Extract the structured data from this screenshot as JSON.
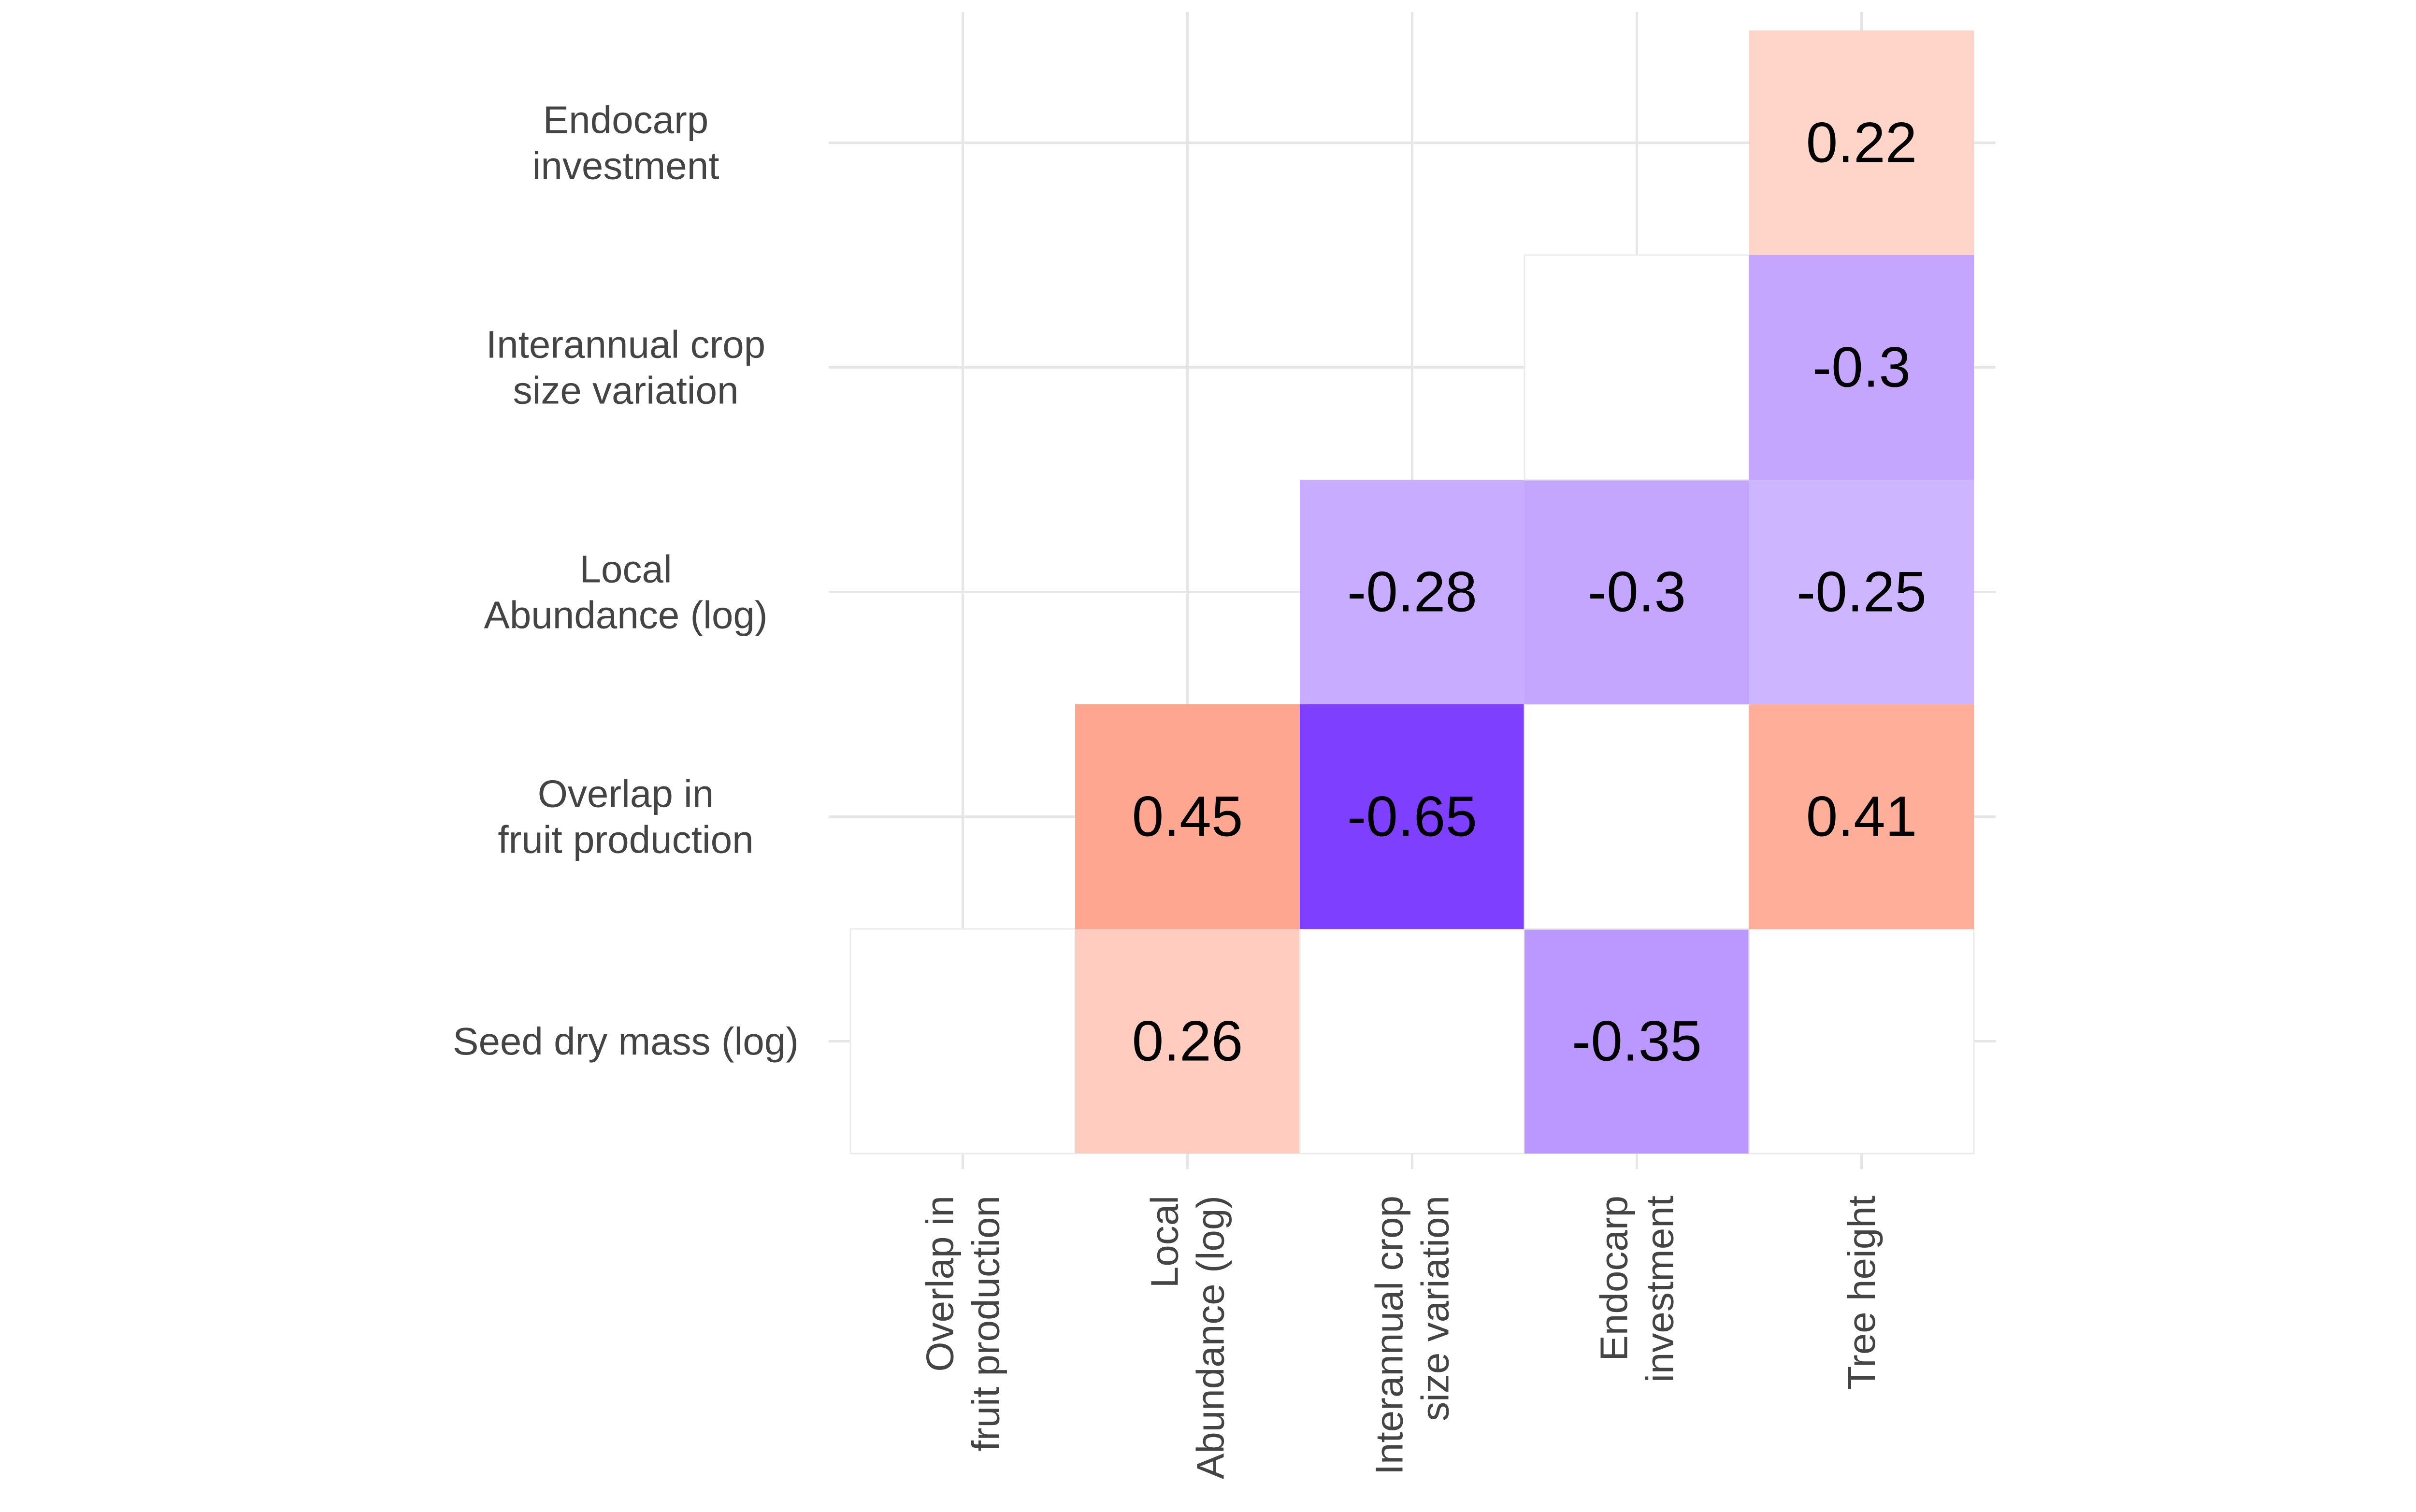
{
  "chart_data": {
    "type": "heatmap",
    "title": "",
    "xlabel": "",
    "ylabel": "",
    "x_categories": [
      [
        "Overlap in",
        "fruit production"
      ],
      [
        "Local",
        "Abundance (log)"
      ],
      [
        "Interannual crop",
        "size variation"
      ],
      [
        "Endocarp",
        "investment"
      ],
      [
        "Tree height"
      ]
    ],
    "y_categories": [
      [
        "Seed dry mass (log)"
      ],
      [
        "Overlap in",
        "fruit production"
      ],
      [
        "Local",
        "Abundance (log)"
      ],
      [
        "Interannual crop",
        "size variation"
      ],
      [
        "Endocarp",
        "investment"
      ]
    ],
    "cells": [
      {
        "x": 0,
        "y": 0,
        "value": null
      },
      {
        "x": 1,
        "y": 0,
        "value": 0.26
      },
      {
        "x": 2,
        "y": 0,
        "value": null
      },
      {
        "x": 3,
        "y": 0,
        "value": -0.35
      },
      {
        "x": 4,
        "y": 0,
        "value": null
      },
      {
        "x": 1,
        "y": 1,
        "value": 0.45
      },
      {
        "x": 2,
        "y": 1,
        "value": -0.65
      },
      {
        "x": 3,
        "y": 1,
        "value": null
      },
      {
        "x": 4,
        "y": 1,
        "value": 0.41
      },
      {
        "x": 2,
        "y": 2,
        "value": -0.28
      },
      {
        "x": 3,
        "y": 2,
        "value": -0.3
      },
      {
        "x": 4,
        "y": 2,
        "value": -0.25
      },
      {
        "x": 3,
        "y": 3,
        "value": null
      },
      {
        "x": 4,
        "y": 3,
        "value": -0.3
      },
      {
        "x": 4,
        "y": 4,
        "value": 0.22
      }
    ],
    "color_scale": {
      "negative": "#7f3fff",
      "positive": "#ff7f5f",
      "neutral": "#ffffff",
      "max_abs": 0.65
    },
    "grid": true,
    "legend": "none"
  }
}
